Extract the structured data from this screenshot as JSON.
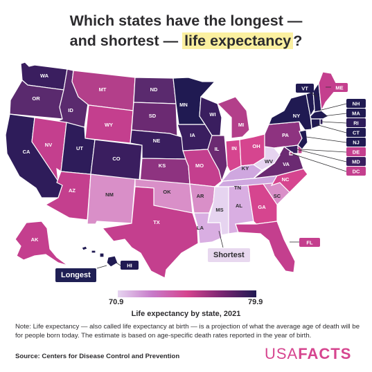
{
  "title": {
    "line1": "Which states have the longest —",
    "line2_pre": "and shortest — ",
    "line2_highlight": "life expectancy",
    "line2_post": "?"
  },
  "legend": {
    "min": "70.9",
    "max": "79.9",
    "title": "Life expectancy by state, 2021"
  },
  "callouts": {
    "longest": "Longest",
    "shortest": "Shortest"
  },
  "note": "Note: Life expectancy — also called life expectancy at birth — is a projection of what the average age of death will be for people born today. The estimate is based on age-specific death rates reported in the year of birth.",
  "source": "Source: Centers for Disease Control and Prevention",
  "brand": {
    "part1": "USA",
    "part2": "FACTS"
  },
  "colors": {
    "darkest": "#201a52",
    "dark": "#3a1e5f",
    "purple": "#6b2a72",
    "magenta": "#c43f8e",
    "pink": "#d6458f",
    "light_pink": "#d98fc8",
    "lavender": "#cfa7df",
    "lightest": "#e6d4f0"
  },
  "states": [
    {
      "abbr": "WA",
      "color": "#3a1e5f"
    },
    {
      "abbr": "OR",
      "color": "#5a2a6e"
    },
    {
      "abbr": "CA",
      "color": "#2e1c5a"
    },
    {
      "abbr": "ID",
      "color": "#5a2a6e"
    },
    {
      "abbr": "NV",
      "color": "#c43f8e"
    },
    {
      "abbr": "MT",
      "color": "#b33f8a"
    },
    {
      "abbr": "WY",
      "color": "#c43f8e"
    },
    {
      "abbr": "UT",
      "color": "#2e1c5a"
    },
    {
      "abbr": "CO",
      "color": "#3a1e5f"
    },
    {
      "abbr": "AZ",
      "color": "#c43f8e"
    },
    {
      "abbr": "NM",
      "color": "#d98fc8"
    },
    {
      "abbr": "ND",
      "color": "#5a2a6e"
    },
    {
      "abbr": "SD",
      "color": "#6b2a72"
    },
    {
      "abbr": "NE",
      "color": "#3a1e5f"
    },
    {
      "abbr": "KS",
      "color": "#8e3380"
    },
    {
      "abbr": "OK",
      "color": "#d98fc8"
    },
    {
      "abbr": "TX",
      "color": "#c43f8e"
    },
    {
      "abbr": "MN",
      "color": "#201a52"
    },
    {
      "abbr": "IA",
      "color": "#3a1e5f"
    },
    {
      "abbr": "MO",
      "color": "#c43f8e"
    },
    {
      "abbr": "AR",
      "color": "#d98fc8"
    },
    {
      "abbr": "LA",
      "color": "#d9aee2"
    },
    {
      "abbr": "WI",
      "color": "#3a1e5f"
    },
    {
      "abbr": "IL",
      "color": "#6b2a72"
    },
    {
      "abbr": "MS",
      "color": "#e6d4f0"
    },
    {
      "abbr": "MI",
      "color": "#b33f8a"
    },
    {
      "abbr": "IN",
      "color": "#d6458f"
    },
    {
      "abbr": "OH",
      "color": "#d6458f"
    },
    {
      "abbr": "KY",
      "color": "#cfa7df"
    },
    {
      "abbr": "TN",
      "color": "#cfa7df"
    },
    {
      "abbr": "AL",
      "color": "#d9aee2"
    },
    {
      "abbr": "GA",
      "color": "#d6458f"
    },
    {
      "abbr": "FL",
      "color": "#c43f8e"
    },
    {
      "abbr": "SC",
      "color": "#d98fc8"
    },
    {
      "abbr": "NC",
      "color": "#d6458f"
    },
    {
      "abbr": "VA",
      "color": "#6b2a72"
    },
    {
      "abbr": "WV",
      "color": "#e6d4f0"
    },
    {
      "abbr": "PA",
      "color": "#8e3380"
    },
    {
      "abbr": "NY",
      "color": "#201a52"
    },
    {
      "abbr": "ME",
      "color": "#c43f8e"
    },
    {
      "abbr": "VT",
      "color": "#201a52"
    },
    {
      "abbr": "NH",
      "color": "#201a52"
    },
    {
      "abbr": "MA",
      "color": "#201a52"
    },
    {
      "abbr": "RI",
      "color": "#2e1c5a"
    },
    {
      "abbr": "CT",
      "color": "#201a52"
    },
    {
      "abbr": "NJ",
      "color": "#201a52"
    },
    {
      "abbr": "DE",
      "color": "#c43f8e"
    },
    {
      "abbr": "MD",
      "color": "#3a1e5f"
    },
    {
      "abbr": "DC",
      "color": "#c43f8e"
    },
    {
      "abbr": "AK",
      "color": "#c43f8e"
    },
    {
      "abbr": "HI",
      "color": "#201a52"
    }
  ]
}
